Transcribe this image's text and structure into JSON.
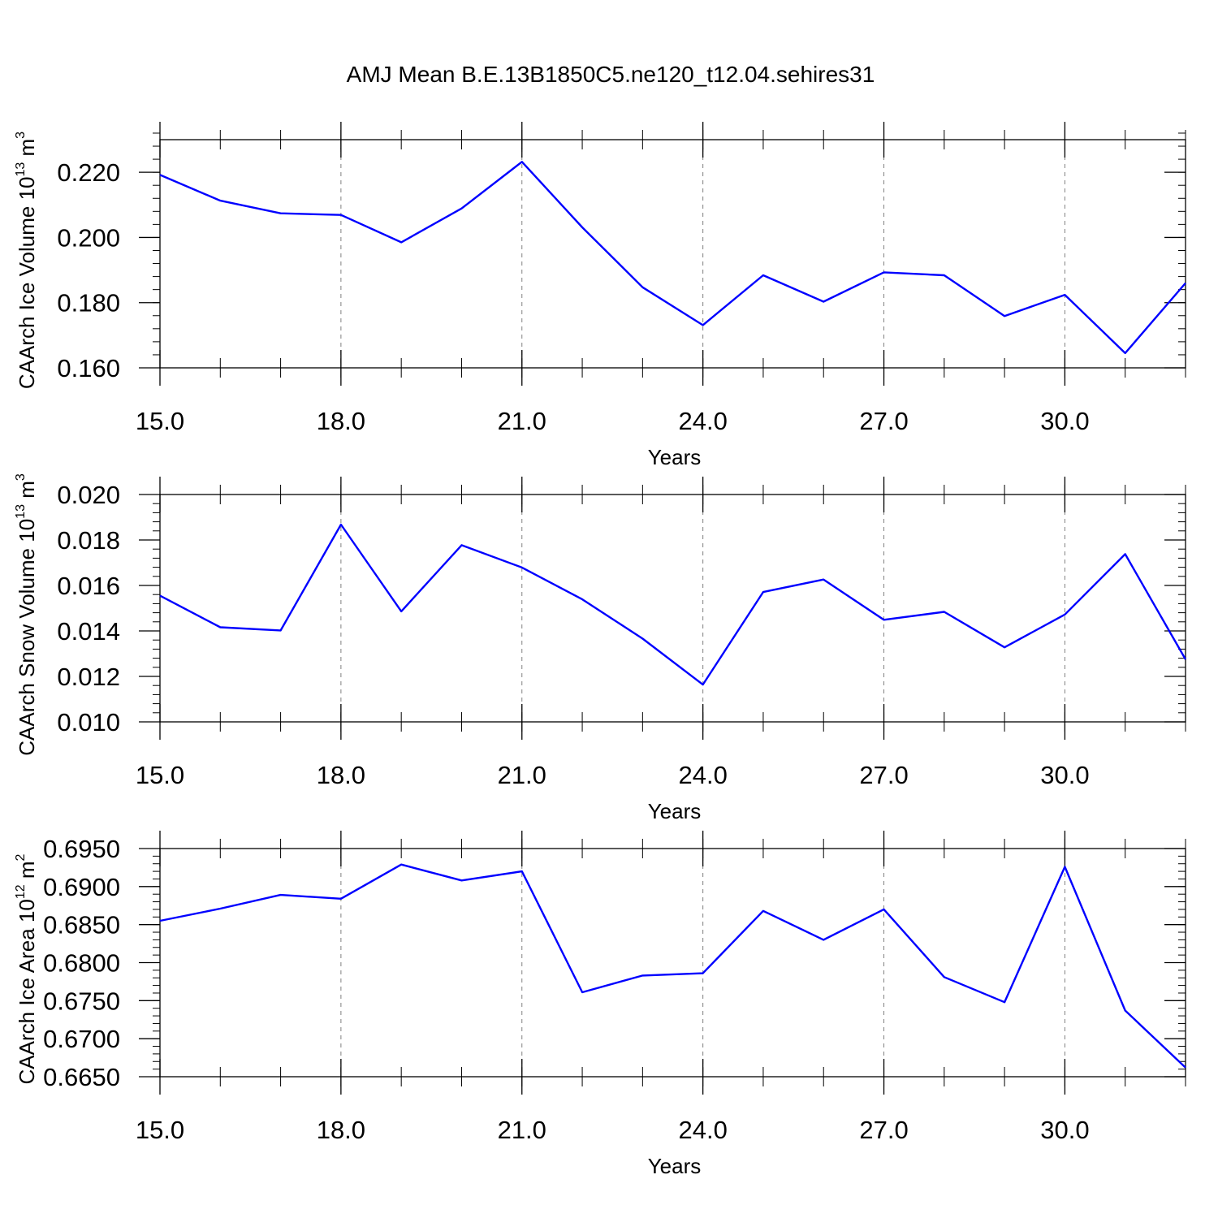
{
  "title": "AMJ Mean B.E.13B1850C5.ne120_t12.04.sehires31",
  "colors": {
    "line": "#0000ff",
    "axis": "#000000",
    "grid": "#808080",
    "background": "#ffffff"
  },
  "chart_data": [
    {
      "type": "line",
      "xlabel": "Years",
      "ylabel_main": "CAArch Ice Volume 10",
      "ylabel_exp": "13",
      "ylabel_unit": " m",
      "ylabel_unit_exp": "3",
      "xlim": [
        15,
        32
      ],
      "ylim": [
        0.16,
        0.23
      ],
      "xticks": [
        15,
        18,
        21,
        24,
        27,
        30
      ],
      "xtick_labels": [
        "15.0",
        "18.0",
        "21.0",
        "24.0",
        "27.0",
        "30.0"
      ],
      "yticks": [
        0.16,
        0.18,
        0.2,
        0.22
      ],
      "ytick_labels": [
        "0.160",
        "0.180",
        "0.200",
        "0.220"
      ],
      "y_minor_step": 0.004,
      "grid": "vertical dashed at major x ticks",
      "x": [
        15,
        16,
        17,
        18,
        19,
        20,
        21,
        22,
        23,
        24,
        25,
        26,
        27,
        28,
        29,
        30,
        31,
        32
      ],
      "values": [
        0.2192,
        0.2113,
        0.2074,
        0.2069,
        0.1985,
        0.2089,
        0.2232,
        0.2031,
        0.1847,
        0.1731,
        0.1884,
        0.1803,
        0.1893,
        0.1884,
        0.1759,
        0.1824,
        0.1645,
        0.186
      ]
    },
    {
      "type": "line",
      "xlabel": "Years",
      "ylabel_main": "CAArch Snow Volume 10",
      "ylabel_exp": "13",
      "ylabel_unit": " m",
      "ylabel_unit_exp": "3",
      "xlim": [
        15,
        32
      ],
      "ylim": [
        0.01,
        0.02
      ],
      "xticks": [
        15,
        18,
        21,
        24,
        27,
        30
      ],
      "xtick_labels": [
        "15.0",
        "18.0",
        "21.0",
        "24.0",
        "27.0",
        "30.0"
      ],
      "yticks": [
        0.01,
        0.012,
        0.014,
        0.016,
        0.018,
        0.02
      ],
      "ytick_labels": [
        "0.010",
        "0.012",
        "0.014",
        "0.016",
        "0.018",
        "0.020"
      ],
      "y_minor_step": 0.0004,
      "grid": "vertical dashed at major x ticks",
      "x": [
        15,
        16,
        17,
        18,
        19,
        20,
        21,
        22,
        23,
        24,
        25,
        26,
        27,
        28,
        29,
        30,
        31,
        32
      ],
      "values": [
        0.01555,
        0.01416,
        0.01402,
        0.01868,
        0.01486,
        0.01777,
        0.01679,
        0.01539,
        0.01366,
        0.01164,
        0.01571,
        0.01626,
        0.01449,
        0.01484,
        0.01328,
        0.01472,
        0.01738,
        0.01275
      ]
    },
    {
      "type": "line",
      "xlabel": "Years",
      "ylabel_main": "CAArch Ice Area 10",
      "ylabel_exp": "12",
      "ylabel_unit": " m",
      "ylabel_unit_exp": "2",
      "xlim": [
        15,
        32
      ],
      "ylim": [
        0.665,
        0.695
      ],
      "xticks": [
        15,
        18,
        21,
        24,
        27,
        30
      ],
      "xtick_labels": [
        "15.0",
        "18.0",
        "21.0",
        "24.0",
        "27.0",
        "30.0"
      ],
      "yticks": [
        0.665,
        0.67,
        0.675,
        0.68,
        0.685,
        0.69,
        0.695
      ],
      "ytick_labels": [
        "0.6650",
        "0.6700",
        "0.6750",
        "0.6800",
        "0.6850",
        "0.6900",
        "0.6950"
      ],
      "y_minor_step": 0.001,
      "grid": "vertical dashed at major x ticks",
      "x": [
        15,
        16,
        17,
        18,
        19,
        20,
        21,
        22,
        23,
        24,
        25,
        26,
        27,
        28,
        29,
        30,
        31,
        32
      ],
      "values": [
        0.6855,
        0.6871,
        0.6889,
        0.6884,
        0.6929,
        0.6908,
        0.692,
        0.6761,
        0.6783,
        0.6786,
        0.6868,
        0.683,
        0.687,
        0.6781,
        0.6748,
        0.6926,
        0.6737,
        0.6662
      ]
    }
  ]
}
